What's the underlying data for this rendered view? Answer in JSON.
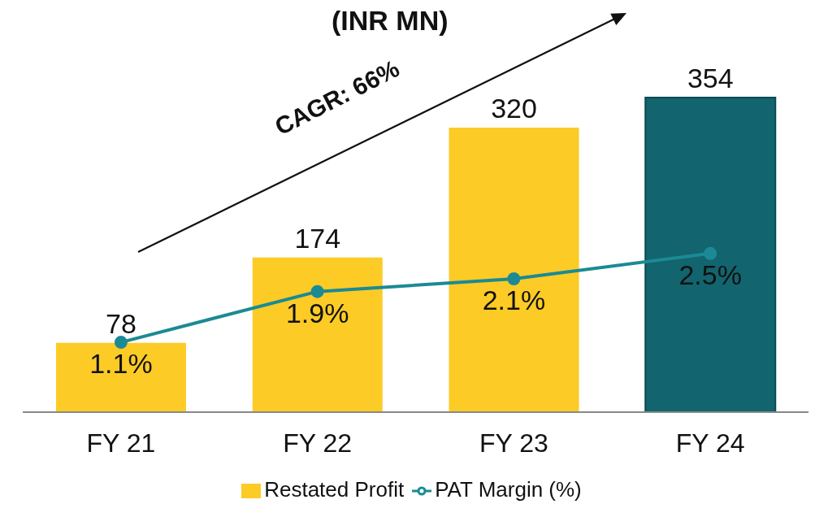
{
  "chart_data": {
    "type": "bar",
    "title": "(INR MN)",
    "categories": [
      "FY 21",
      "FY 22",
      "FY 23",
      "FY 24"
    ],
    "series": [
      {
        "name": "Restated Profit",
        "color": "#fccb26",
        "colors": [
          "#fccb26",
          "#fccb26",
          "#fccb26",
          "#12646e"
        ],
        "values": [
          78,
          174,
          320,
          354
        ]
      },
      {
        "name": "PAT Margin (%)",
        "type": "line",
        "axis": "y2",
        "color": "#1b8a94",
        "values": [
          1.1,
          1.9,
          2.1,
          2.5
        ],
        "value_labels": [
          "1.1%",
          "1.9%",
          "2.1%",
          "2.5%"
        ]
      }
    ],
    "data_labels": true,
    "marker": "circle",
    "legend": "bottom",
    "annotations": [
      "CAGR: 66%"
    ]
  }
}
